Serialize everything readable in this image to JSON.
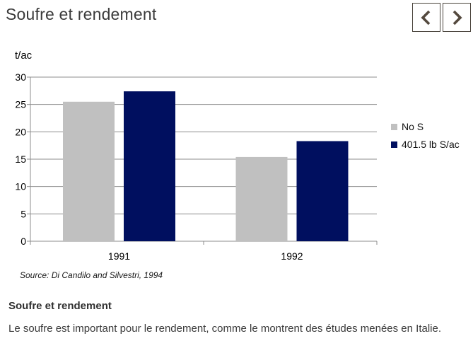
{
  "header": {
    "title": "Soufre et rendement",
    "nav": {
      "prev_icon": "chevron-left",
      "next_icon": "chevron-right",
      "icon_color": "#54493e"
    }
  },
  "chart_data": {
    "type": "bar",
    "title": "Soufre et rendement",
    "ylabel": "t/ac",
    "xlabel": "",
    "categories": [
      "1991",
      "1992"
    ],
    "series": [
      {
        "name": "No S",
        "color": "#c0c0c0",
        "values": [
          25.5,
          15.4
        ]
      },
      {
        "name": "401.5 lb S/ac",
        "color": "#000f5f",
        "values": [
          27.4,
          18.3
        ]
      }
    ],
    "ylim": [
      0,
      30
    ],
    "ytick_step": 5,
    "grid": true,
    "grid_color": "#8c8c8c",
    "axis_color": "#8c8c8c",
    "legend_position": "right",
    "source": "Source: Di Candilo and Silvestri, 1994"
  },
  "body": {
    "heading": "Soufre et rendement",
    "paragraph": "Le soufre est important pour le rendement, comme le montrent des études menées en Italie."
  }
}
